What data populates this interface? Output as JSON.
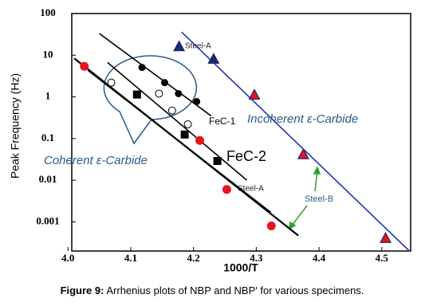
{
  "chart_data": {
    "type": "scatter",
    "xlabel": "1000/T",
    "ylabel": "Peak Frequency (Hz)",
    "xlim": [
      4.006,
      4.546
    ],
    "ylim": [
      0.0002,
      100
    ],
    "yscale": "log",
    "xticks": [
      {
        "value": 4,
        "label": "4.0"
      },
      4.1,
      4.2,
      4.3,
      4.4,
      4.5
    ],
    "yticks": [
      100,
      10,
      1,
      0.1,
      0.01,
      0.001
    ],
    "series": [
      {
        "marker": "circle",
        "color": "#e8141c",
        "x": [
          4.026,
          4.21,
          4.253,
          4.324
        ],
        "values": [
          5.4,
          0.09,
          0.006,
          0.0008
        ]
      },
      {
        "marker": "triangle",
        "color": "#e8141c",
        "x": [
          4.297,
          4.375,
          4.506
        ],
        "values": [
          1.1,
          0.041,
          0.0004
        ]
      },
      {
        "marker": "triangle",
        "color": "#1c2a6e",
        "x": [
          4.177,
          4.232
        ],
        "values": [
          16,
          8
        ]
      },
      {
        "marker": "circle",
        "color": "#000000",
        "x": [
          4.118,
          4.154,
          4.176,
          4.205
        ],
        "values": [
          5.1,
          2.2,
          1.2,
          0.77
        ]
      },
      {
        "marker": "open-circle",
        "color": "#000000",
        "x": [
          4.069,
          4.145,
          4.166,
          4.191
        ],
        "values": [
          2.2,
          1.2,
          0.47,
          0.22
        ]
      },
      {
        "marker": "square",
        "color": "#000000",
        "x": [
          4.11,
          4.186,
          4.238
        ],
        "values": [
          1.14,
          0.125,
          0.029
        ]
      }
    ],
    "lines": [
      {
        "color": "#000000",
        "x": [
          4.01,
          4.367
        ],
        "values": [
          8.4,
          0.00047
        ]
      },
      {
        "color": "#000000",
        "x": [
          4.032,
          4.323
        ],
        "values": [
          4.3,
          0.0017
        ]
      },
      {
        "color": "#000000",
        "x": [
          4.063,
          4.285
        ],
        "values": [
          6.7,
          0.01
        ]
      },
      {
        "color": "#000000",
        "x": [
          4.05,
          4.228
        ],
        "values": [
          33,
          0.35
        ]
      },
      {
        "color": "#2233bb",
        "x": [
          4.181,
          4.544
        ],
        "values": [
          36,
          0.0002
        ]
      }
    ],
    "annotations": [
      "Steel-A",
      "FeC-1",
      "FeC-2",
      "Steel-A",
      "Incoherent ε-Carbide",
      "Coherent ε-Carbide",
      "Steel-B"
    ],
    "caption": {
      "label": "Figure 9:",
      "text": " Arrhenius plots of NBP and NBP' for various specimens."
    }
  }
}
